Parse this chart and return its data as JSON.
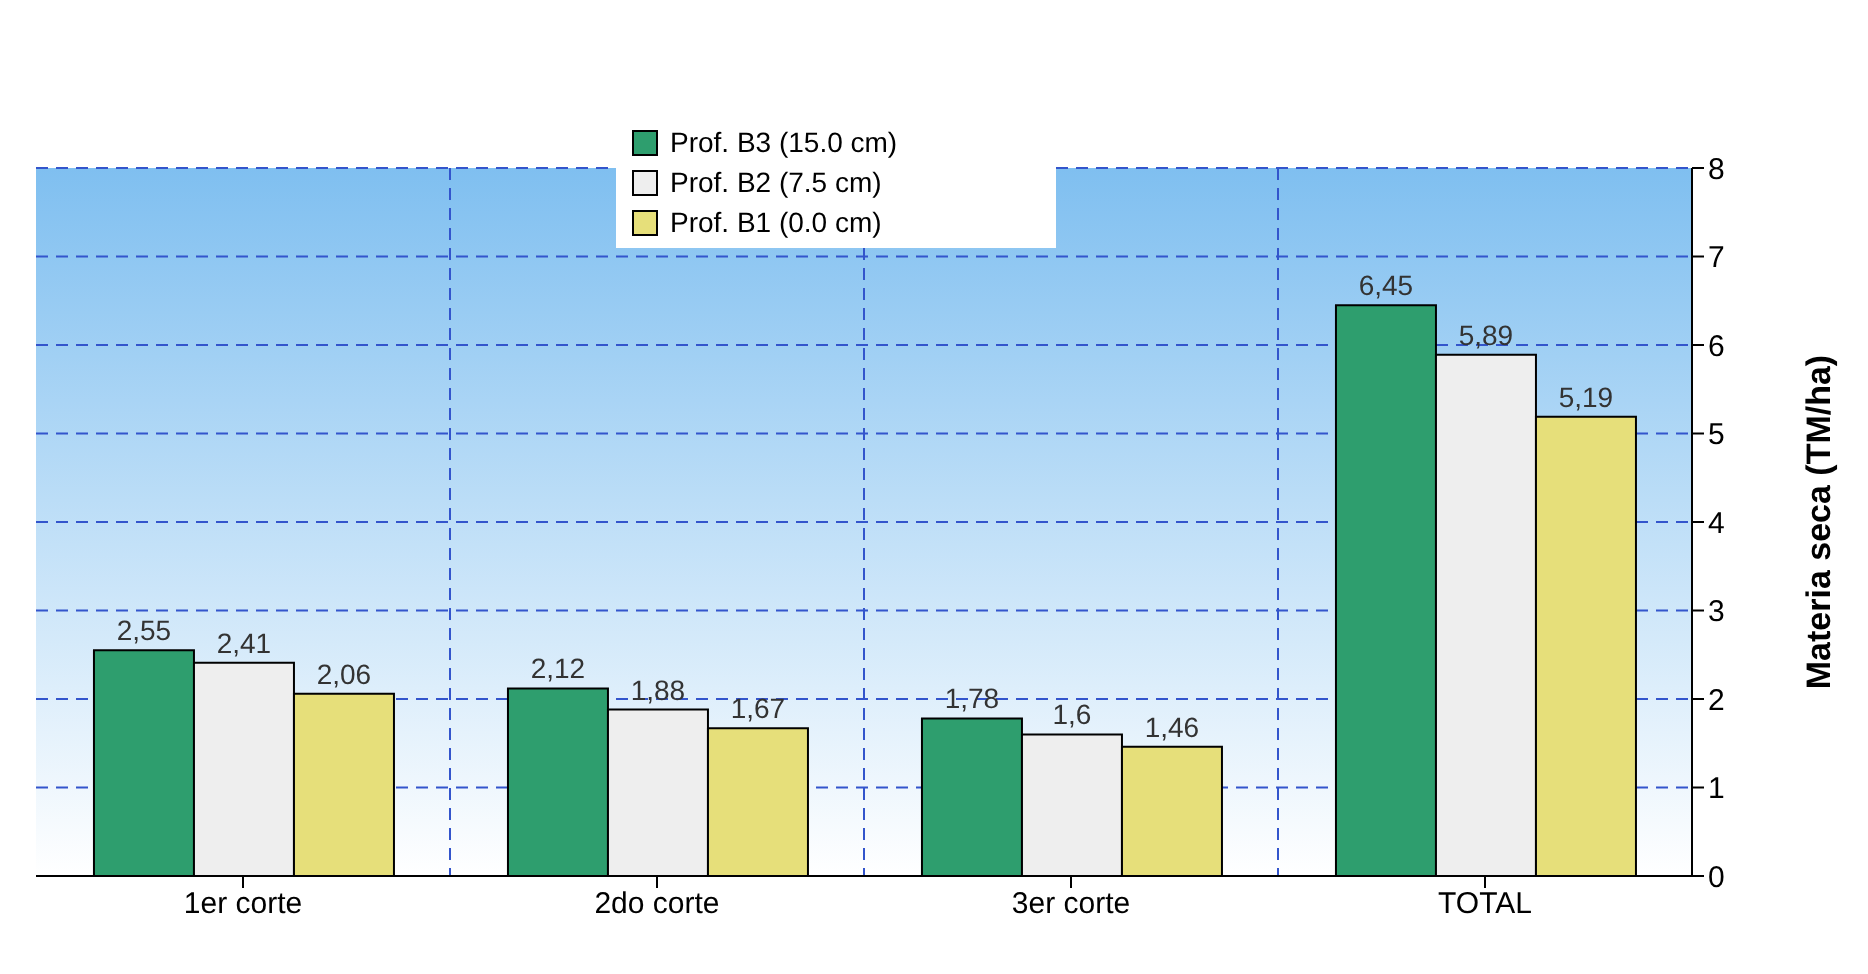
{
  "chart_data": {
    "type": "bar",
    "ylabel": "Materia seca (TM/ha)",
    "categories": [
      "1er corte",
      "2do corte",
      "3er corte",
      "TOTAL"
    ],
    "series": [
      {
        "name": "Prof. B3 (15.0 cm)",
        "color": "#2e9e6e",
        "values": [
          2.55,
          2.12,
          1.78,
          6.45
        ],
        "value_labels": [
          "2,55",
          "2,12",
          "1,78",
          "6,45"
        ]
      },
      {
        "name": "Prof. B2 (7.5 cm)",
        "color": "#eeeeee",
        "values": [
          2.41,
          1.88,
          1.6,
          5.89
        ],
        "value_labels": [
          "2,41",
          "1,88",
          "1,6",
          "5,89"
        ]
      },
      {
        "name": "Prof. B1 (0.0 cm)",
        "color": "#e6df7a",
        "values": [
          2.06,
          1.67,
          1.46,
          5.19
        ],
        "value_labels": [
          "2,06",
          "1,67",
          "1,46",
          "5,19"
        ]
      }
    ],
    "ylim": [
      0,
      8
    ],
    "yticks": [
      0,
      1,
      2,
      3,
      4,
      5,
      6,
      7,
      8
    ],
    "grid": true,
    "legend": "top"
  }
}
